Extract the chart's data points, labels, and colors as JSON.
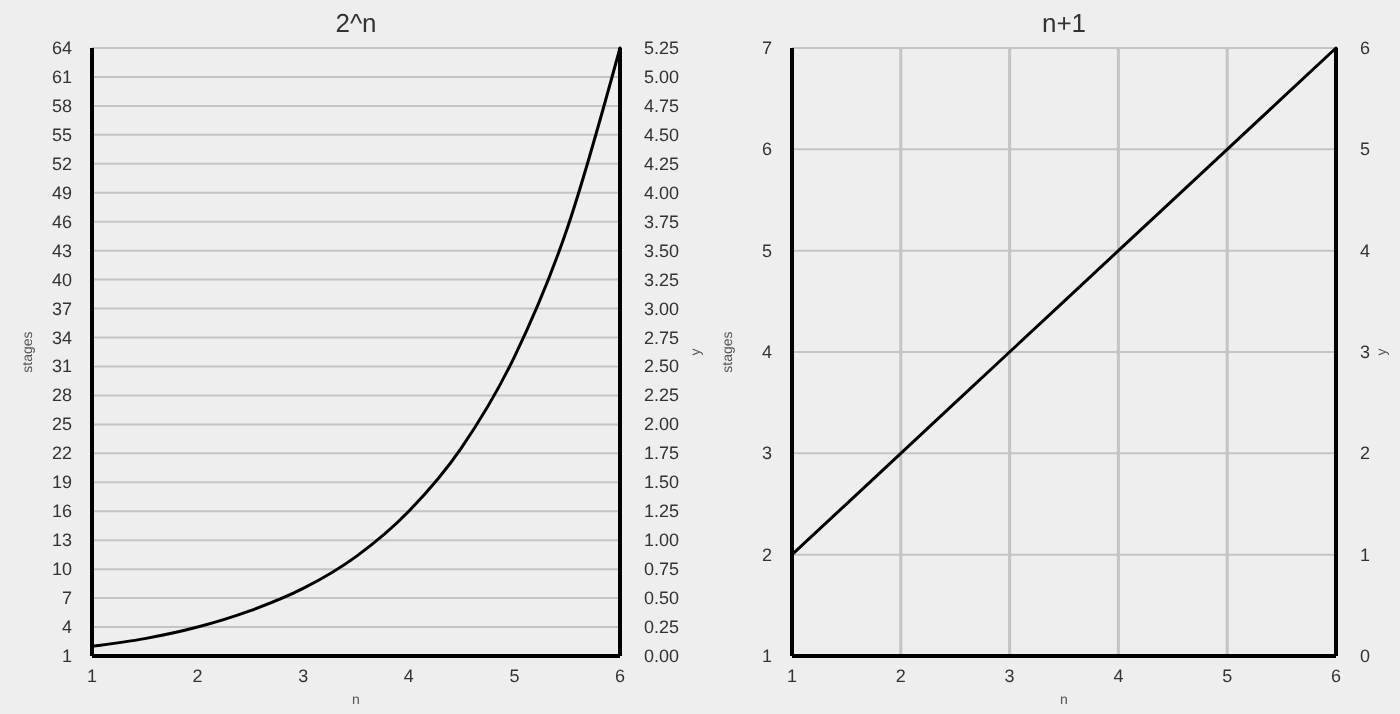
{
  "chart_data": [
    {
      "type": "line",
      "title": "2^n",
      "xlabel": "n",
      "ylabel": "stages",
      "y2label": "y",
      "x": [
        1,
        1.5,
        2,
        2.5,
        3,
        3.5,
        4,
        4.5,
        5,
        5.5,
        6
      ],
      "series": [
        {
          "color": "#000000",
          "values": [
            2,
            2.8,
            4,
            5.7,
            8,
            11.3,
            16,
            22.6,
            32,
            45.3,
            64
          ]
        }
      ],
      "xlim": [
        1,
        6
      ],
      "xticks": [
        1,
        2,
        3,
        4,
        5,
        6
      ],
      "ylim": [
        1,
        64
      ],
      "yticks": [
        1,
        4,
        7,
        10,
        13,
        16,
        19,
        22,
        25,
        28,
        31,
        34,
        37,
        40,
        43,
        46,
        49,
        52,
        55,
        58,
        61,
        64
      ],
      "y2lim": [
        0,
        5.25
      ],
      "y2ticks": [
        {
          "value": 0,
          "label": "0.00"
        },
        0.25,
        {
          "value": 0.5,
          "label": "0.50"
        },
        0.75,
        {
          "value": 1,
          "label": "1.00"
        },
        1.25,
        {
          "value": 1.5,
          "label": "1.50"
        },
        1.75,
        {
          "value": 2,
          "label": "2.00"
        },
        2.25,
        {
          "value": 2.5,
          "label": "2.50"
        },
        2.75,
        {
          "value": 3,
          "label": "3.00"
        },
        3.25,
        {
          "value": 3.5,
          "label": "3.50"
        },
        3.75,
        {
          "value": 4,
          "label": "4.00"
        },
        4.25,
        {
          "value": 4.5,
          "label": "4.50"
        },
        4.75,
        {
          "value": 5,
          "label": "5.00"
        },
        5.25
      ],
      "grid": "y",
      "marker": "none",
      "line_style": "solid"
    },
    {
      "type": "line",
      "title": "n+1",
      "xlabel": "n",
      "ylabel": "stages",
      "y2label": "y",
      "x": [
        1,
        2,
        3,
        4,
        5,
        6
      ],
      "series": [
        {
          "color": "#000000",
          "values": [
            2,
            3,
            4,
            5,
            6,
            7
          ]
        }
      ],
      "xlim": [
        1,
        6
      ],
      "xticks": [
        1,
        2,
        3,
        4,
        5,
        6
      ],
      "ylim": [
        1,
        7
      ],
      "yticks": [
        1,
        2,
        3,
        4,
        5,
        6,
        7
      ],
      "y2lim": [
        0,
        6
      ],
      "y2ticks": [
        0,
        1,
        2,
        3,
        4,
        5,
        6
      ],
      "grid": true,
      "marker": "none",
      "line_style": "solid"
    }
  ]
}
